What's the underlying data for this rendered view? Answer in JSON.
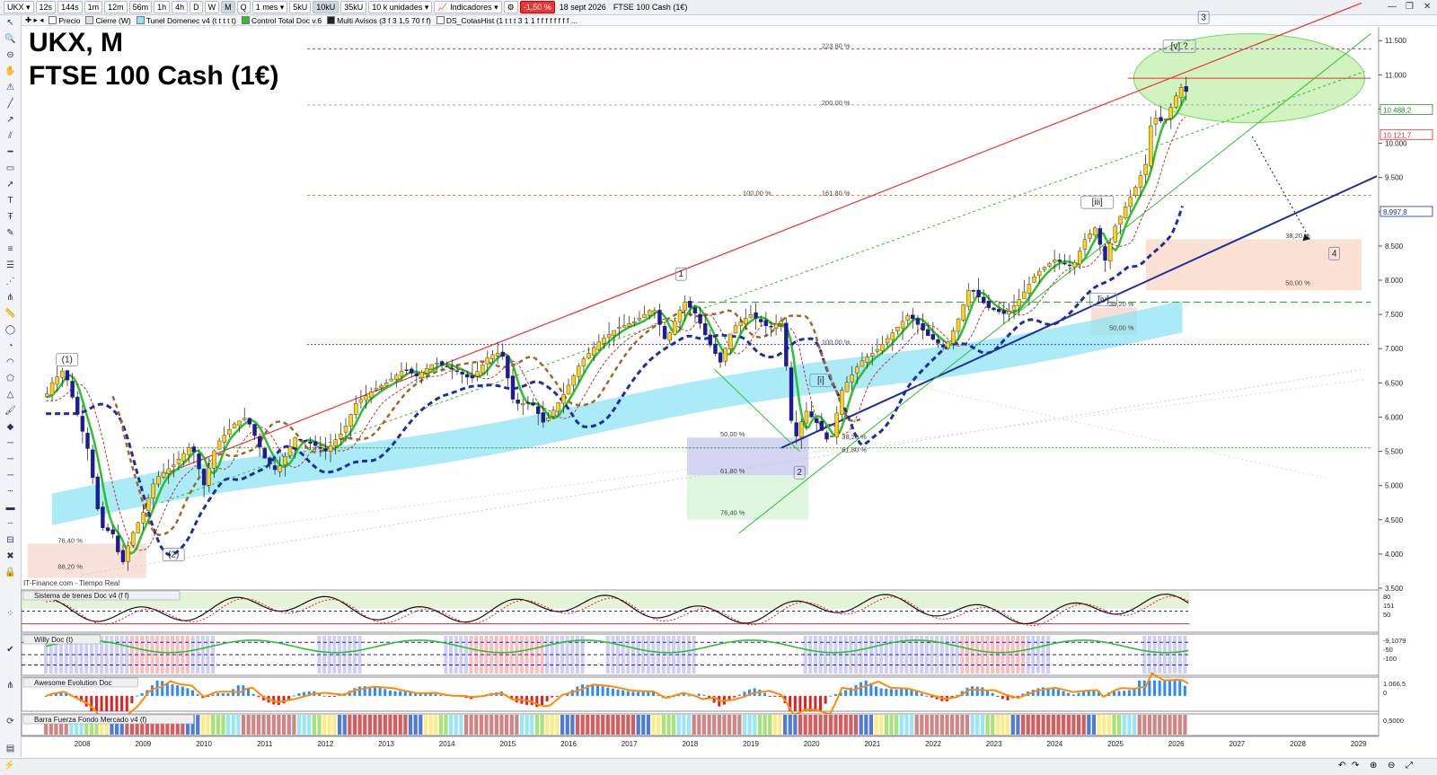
{
  "toolbar": {
    "symbol": "UKX",
    "timeframes": [
      "12s",
      "144s",
      "1m",
      "12m",
      "56m",
      "1h",
      "4h",
      "D",
      "W",
      "M",
      "Q"
    ],
    "active_timeframe": "M",
    "period": "1 mes",
    "tick_buttons": [
      "5kU",
      "10kU",
      "35kU"
    ],
    "active_tick": "10kU",
    "units": "10 k unidades",
    "indicators_label": "Indicadores",
    "change": "-1,50 %",
    "date": "18 sept 2026",
    "instrument": "FTSE 100 Cash (1€)"
  },
  "indicator_bar": {
    "items": [
      "Precio",
      "Cierre (W)",
      "Tunel Domenec v4 (t t t t t)",
      "Control Total Doc v.6",
      "Multi Avisos (3 f 3 1,5 70 f f)",
      "DS_CotasHist (1 t t t 3 1 1 f f f f f f f f ..."
    ]
  },
  "chart_title": {
    "line1": "UKX, M",
    "line2": "FTSE 100 Cash (1€)"
  },
  "source_label": "IT-Finance.com - Tiempo Real",
  "colors": {
    "candle_up": "#1fae3a",
    "candle_down": "#1a1aa6",
    "trend_red": "#e63333",
    "trend_green": "#2fbf2f",
    "ma_blue": "#1f2f9f",
    "ma_brown": "#a0662a",
    "cloud_cyan": "#8ee4f4"
  },
  "chart_data": {
    "type": "candlestick",
    "x_ticks": [
      "2008",
      "2009",
      "2010",
      "2011",
      "2012",
      "2013",
      "2014",
      "2015",
      "2016",
      "2017",
      "2018",
      "2019",
      "2020",
      "2021",
      "2022",
      "2023",
      "2024",
      "2025",
      "2026",
      "2027",
      "2028",
      "2029"
    ],
    "y_ticks": [
      "11.500",
      "11.000",
      "10.500",
      "10.000",
      "9.500",
      "9.000",
      "8.500",
      "8.000",
      "7.500",
      "7.000",
      "6.500",
      "6.000",
      "5.500",
      "5.000",
      "4.500",
      "4.000",
      "3.500"
    ],
    "price_labels": [
      "10.488,2",
      "10.121,7",
      "8.997,8"
    ],
    "ylim": [
      3500,
      11700
    ],
    "xlim": [
      2007.5,
      2029.8
    ],
    "close_path": [
      [
        2007.9,
        6300
      ],
      [
        2008.0,
        6500
      ],
      [
        2008.2,
        6700
      ],
      [
        2008.4,
        6100
      ],
      [
        2008.6,
        5500
      ],
      [
        2008.8,
        4400
      ],
      [
        2009.0,
        4300
      ],
      [
        2009.15,
        3830
      ],
      [
        2009.3,
        4250
      ],
      [
        2009.5,
        4600
      ],
      [
        2009.7,
        5100
      ],
      [
        2010.0,
        5300
      ],
      [
        2010.3,
        5600
      ],
      [
        2010.5,
        5000
      ],
      [
        2010.7,
        5600
      ],
      [
        2011.0,
        5900
      ],
      [
        2011.2,
        6000
      ],
      [
        2011.5,
        5400
      ],
      [
        2011.7,
        5200
      ],
      [
        2012.0,
        5700
      ],
      [
        2012.3,
        5600
      ],
      [
        2012.5,
        5500
      ],
      [
        2012.8,
        5800
      ],
      [
        2013.0,
        6200
      ],
      [
        2013.3,
        6400
      ],
      [
        2013.5,
        6500
      ],
      [
        2013.8,
        6700
      ],
      [
        2014.0,
        6600
      ],
      [
        2014.3,
        6800
      ],
      [
        2014.6,
        6700
      ],
      [
        2014.9,
        6550
      ],
      [
        2015.2,
        6900
      ],
      [
        2015.4,
        6950
      ],
      [
        2015.6,
        6200
      ],
      [
        2015.9,
        6200
      ],
      [
        2016.1,
        5900
      ],
      [
        2016.4,
        6300
      ],
      [
        2016.7,
        6800
      ],
      [
        2017.0,
        7100
      ],
      [
        2017.3,
        7300
      ],
      [
        2017.6,
        7400
      ],
      [
        2017.9,
        7600
      ],
      [
        2018.1,
        7100
      ],
      [
        2018.4,
        7700
      ],
      [
        2018.6,
        7500
      ],
      [
        2018.8,
        7100
      ],
      [
        2019.0,
        6800
      ],
      [
        2019.2,
        7300
      ],
      [
        2019.5,
        7500
      ],
      [
        2019.8,
        7300
      ],
      [
        2020.0,
        7400
      ],
      [
        2020.1,
        6600
      ],
      [
        2020.2,
        5600
      ],
      [
        2020.4,
        6100
      ],
      [
        2020.6,
        5900
      ],
      [
        2020.8,
        5600
      ],
      [
        2021.0,
        6400
      ],
      [
        2021.3,
        6800
      ],
      [
        2021.6,
        7000
      ],
      [
        2021.9,
        7300
      ],
      [
        2022.1,
        7500
      ],
      [
        2022.4,
        7200
      ],
      [
        2022.7,
        7000
      ],
      [
        2022.9,
        7400
      ],
      [
        2023.1,
        7900
      ],
      [
        2023.4,
        7600
      ],
      [
        2023.7,
        7500
      ],
      [
        2023.9,
        7700
      ],
      [
        2024.2,
        8100
      ],
      [
        2024.5,
        8300
      ],
      [
        2024.8,
        8200
      ],
      [
        2025.0,
        8600
      ],
      [
        2025.2,
        8800
      ],
      [
        2025.3,
        8200
      ],
      [
        2025.5,
        8800
      ],
      [
        2025.8,
        9300
      ],
      [
        2026.0,
        9700
      ],
      [
        2026.1,
        10400
      ],
      [
        2026.3,
        10300
      ],
      [
        2026.5,
        10700
      ],
      [
        2026.6,
        10850
      ],
      [
        2026.7,
        10700
      ]
    ],
    "annotations": [
      {
        "text": "(1)",
        "x": 2008.25,
        "y": 6800
      },
      {
        "text": "(2)",
        "x": 2010.0,
        "y": 3950
      },
      {
        "text": "1",
        "x": 2018.35,
        "y": 8050
      },
      {
        "text": "2",
        "x": 2020.3,
        "y": 5150
      },
      {
        "text": "3",
        "x": 2026.95,
        "y": 11800
      },
      {
        "text": "4",
        "x": 2029.1,
        "y": 8350
      },
      {
        "text": "[i]",
        "x": 2020.65,
        "y": 6500
      },
      {
        "text": "[iii]",
        "x": 2025.2,
        "y": 9100
      },
      {
        "text": "[iv]",
        "x": 2025.3,
        "y": 7680
      },
      {
        "text": "[v] ?",
        "x": 2026.55,
        "y": 11380
      }
    ],
    "fib_levels": [
      {
        "text": "223,60 %",
        "x": 2020.9,
        "y": 11390
      },
      {
        "text": "200,00 %",
        "x": 2020.9,
        "y": 10560
      },
      {
        "text": "161,80 %",
        "x": 2020.9,
        "y": 9240
      },
      {
        "text": "100,00 %",
        "x": 2019.6,
        "y": 9240
      },
      {
        "text": "100,00 %",
        "x": 2020.9,
        "y": 7060
      },
      {
        "text": "50,00 %",
        "x": 2019.2,
        "y": 5720
      },
      {
        "text": "61,80 %",
        "x": 2019.2,
        "y": 5180
      },
      {
        "text": "76,40 %",
        "x": 2019.2,
        "y": 4570
      },
      {
        "text": "76,40 %",
        "x": 2008.3,
        "y": 4160
      },
      {
        "text": "88,20 %",
        "x": 2008.3,
        "y": 3780
      },
      {
        "text": "38,20 %",
        "x": 2028.5,
        "y": 8620
      },
      {
        "text": "50,00 %",
        "x": 2028.5,
        "y": 7930
      },
      {
        "text": "38,20 %",
        "x": 2025.6,
        "y": 7620
      },
      {
        "text": "50,00 %",
        "x": 2025.6,
        "y": 7270
      },
      {
        "text": "38,20 %",
        "x": 2021.2,
        "y": 5680
      },
      {
        "text": "61,80 %",
        "x": 2021.2,
        "y": 5490
      }
    ],
    "panels": [
      {
        "name": "Sistema de trenes Doc v4 (f f)",
        "values": [
          "80",
          "151",
          "50"
        ]
      },
      {
        "name": "Willy Doc (t)",
        "values": [
          "-9,1079",
          "-50",
          "-100"
        ]
      },
      {
        "name": "Awesome Evolution Doc",
        "values": [
          "1.066,5",
          "0"
        ]
      },
      {
        "name": "Barra Fuerza Fondo Mercado v4 (f)",
        "values": [
          "0,5000"
        ]
      }
    ]
  }
}
